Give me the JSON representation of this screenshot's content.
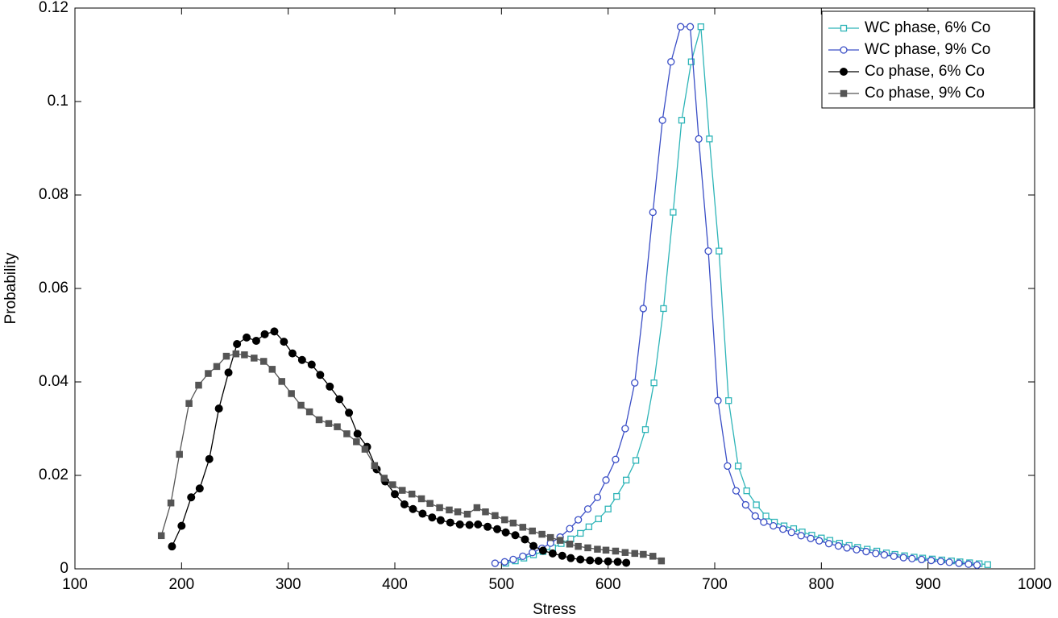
{
  "chart_data": {
    "type": "line",
    "xlabel": "Stress",
    "ylabel": "Probability",
    "xlim": [
      100,
      1000
    ],
    "xticks": [
      100,
      200,
      300,
      400,
      500,
      600,
      700,
      800,
      900,
      1000
    ],
    "ylim": [
      0,
      0.12
    ],
    "yticks": [
      0,
      0.02,
      0.04,
      0.06,
      0.08,
      0.1,
      0.12
    ],
    "legend_loc": "upper right",
    "series": [
      {
        "name": "WC phase, 6% Co",
        "color": "#2fb5b8",
        "marker": "square-open",
        "x": [
          504,
          513,
          521,
          530,
          539,
          548,
          556,
          565,
          574,
          582,
          591,
          600,
          608,
          617,
          626,
          635,
          643,
          652,
          661,
          669,
          678,
          687,
          695,
          704,
          713,
          722,
          730,
          739,
          748,
          756,
          765,
          774,
          782,
          791,
          800,
          808,
          817,
          826,
          834,
          843,
          852,
          861,
          869,
          878,
          887,
          895,
          904,
          913,
          922,
          930,
          939,
          948,
          956
        ],
        "values": [
          0.0012,
          0.0017,
          0.0023,
          0.003,
          0.0037,
          0.0045,
          0.0054,
          0.0064,
          0.0076,
          0.009,
          0.0107,
          0.0128,
          0.0155,
          0.019,
          0.0232,
          0.0298,
          0.0398,
          0.0557,
          0.0763,
          0.096,
          0.1085,
          0.116,
          0.092,
          0.068,
          0.036,
          0.022,
          0.0167,
          0.0137,
          0.0113,
          0.01,
          0.0092,
          0.0086,
          0.0079,
          0.0072,
          0.0066,
          0.0061,
          0.0055,
          0.005,
          0.0046,
          0.0042,
          0.0038,
          0.0034,
          0.0031,
          0.0028,
          0.0025,
          0.0023,
          0.0021,
          0.0019,
          0.0017,
          0.0015,
          0.0013,
          0.0011,
          0.0009
        ]
      },
      {
        "name": "WC phase, 9% Co",
        "color": "#3b4fc6",
        "marker": "circle-open",
        "x": [
          494,
          503,
          511,
          520,
          529,
          538,
          546,
          555,
          564,
          572,
          581,
          590,
          598,
          607,
          616,
          625,
          633,
          642,
          651,
          659,
          668,
          677,
          685,
          694,
          703,
          712,
          720,
          729,
          738,
          746,
          755,
          764,
          772,
          781,
          790,
          798,
          807,
          816,
          824,
          833,
          842,
          851,
          859,
          868,
          877,
          885,
          894,
          903,
          912,
          920,
          929,
          938,
          946
        ],
        "values": [
          0.0012,
          0.0015,
          0.002,
          0.0027,
          0.0035,
          0.0044,
          0.0055,
          0.0068,
          0.0086,
          0.0105,
          0.0128,
          0.0153,
          0.019,
          0.0234,
          0.03,
          0.0398,
          0.0557,
          0.0763,
          0.096,
          0.1085,
          0.116,
          0.116,
          0.092,
          0.068,
          0.036,
          0.022,
          0.0167,
          0.0137,
          0.0113,
          0.01,
          0.0092,
          0.0085,
          0.0078,
          0.0071,
          0.0065,
          0.006,
          0.0054,
          0.0049,
          0.0045,
          0.0041,
          0.0037,
          0.0033,
          0.003,
          0.0027,
          0.0024,
          0.0022,
          0.002,
          0.0018,
          0.0016,
          0.0014,
          0.0012,
          0.001,
          0.0008
        ]
      },
      {
        "name": "Co phase, 6% Co",
        "color": "#000000",
        "marker": "circle",
        "x": [
          191,
          200,
          209,
          217,
          226,
          235,
          244,
          252,
          261,
          270,
          278,
          287,
          296,
          304,
          313,
          322,
          330,
          339,
          348,
          357,
          365,
          374,
          383,
          391,
          400,
          409,
          417,
          426,
          435,
          443,
          452,
          461,
          470,
          478,
          487,
          496,
          504,
          513,
          522,
          530,
          539,
          548,
          557,
          565,
          574,
          583,
          591,
          600,
          609,
          617
        ],
        "values": [
          0.0048,
          0.0092,
          0.0153,
          0.0172,
          0.0235,
          0.0343,
          0.042,
          0.0481,
          0.0495,
          0.0488,
          0.0502,
          0.0508,
          0.0486,
          0.0461,
          0.0447,
          0.0437,
          0.0415,
          0.039,
          0.0363,
          0.0334,
          0.0289,
          0.0261,
          0.0213,
          0.0187,
          0.016,
          0.0138,
          0.0128,
          0.0118,
          0.011,
          0.0104,
          0.0099,
          0.0095,
          0.0094,
          0.0095,
          0.009,
          0.0085,
          0.0078,
          0.0072,
          0.0063,
          0.0049,
          0.0039,
          0.0033,
          0.0028,
          0.0023,
          0.002,
          0.0018,
          0.0017,
          0.0016,
          0.0015,
          0.0013
        ]
      },
      {
        "name": "Co phase, 9% Co",
        "color": "#555555",
        "marker": "square",
        "x": [
          181,
          190,
          198,
          207,
          216,
          225,
          233,
          242,
          251,
          259,
          268,
          277,
          285,
          294,
          303,
          312,
          320,
          329,
          338,
          346,
          355,
          364,
          372,
          381,
          390,
          398,
          407,
          416,
          425,
          433,
          442,
          451,
          459,
          468,
          477,
          485,
          494,
          503,
          511,
          520,
          529,
          538,
          546,
          555,
          564,
          572,
          581,
          590,
          598,
          607,
          616,
          625,
          633,
          642,
          650
        ],
        "values": [
          0.0071,
          0.0141,
          0.0245,
          0.0354,
          0.0393,
          0.0418,
          0.0433,
          0.0455,
          0.046,
          0.0458,
          0.0451,
          0.0444,
          0.0427,
          0.0401,
          0.0375,
          0.035,
          0.0336,
          0.0319,
          0.0311,
          0.0304,
          0.0289,
          0.0272,
          0.0256,
          0.0221,
          0.0194,
          0.018,
          0.0168,
          0.016,
          0.015,
          0.014,
          0.0131,
          0.0126,
          0.0122,
          0.0117,
          0.0131,
          0.0122,
          0.0114,
          0.0105,
          0.0098,
          0.0089,
          0.0081,
          0.0074,
          0.0067,
          0.0061,
          0.0053,
          0.0048,
          0.0045,
          0.0042,
          0.004,
          0.0038,
          0.0035,
          0.0033,
          0.0031,
          0.0027,
          0.0017
        ]
      }
    ]
  }
}
